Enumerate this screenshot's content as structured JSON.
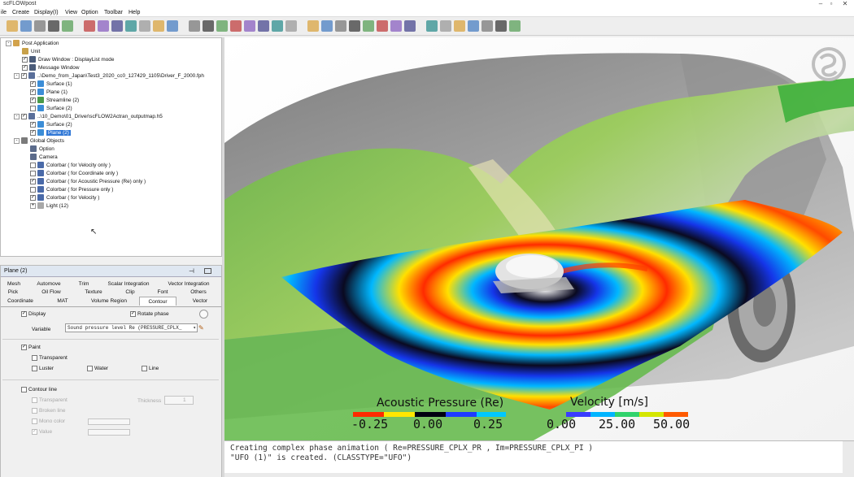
{
  "window": {
    "title": "scFLOWpost"
  },
  "menu": [
    "ile",
    "Create",
    "Display(I)",
    "View",
    "Option",
    "Toolbar",
    "Help"
  ],
  "toolbar_icons": [
    "open-icon",
    "save-icon",
    "save-as-icon",
    "export-icon",
    "cube-icon",
    "model-icon",
    "layers-icon",
    "print-icon",
    "camera-icon",
    "display-icon",
    "settings-icon",
    "probe-icon",
    "grid-icon",
    "rotate-icon",
    "zoom-icon",
    "zoom-fit-icon",
    "pan-icon",
    "view-icon",
    "window-icon",
    "copy-icon",
    "paste-icon",
    "plot-icon",
    "graph-icon",
    "chart-icon",
    "table-icon",
    "image-icon",
    "video-icon",
    "color-icon",
    "palette-icon",
    "box-icon",
    "fill-icon",
    "bw-icon",
    "monitor-icon",
    "layout-icon",
    "help-icon"
  ],
  "tree": {
    "items": [
      {
        "label": "Post Application",
        "level": 0,
        "checked": null,
        "expander": "-",
        "icon": "app-icon"
      },
      {
        "label": "Unit",
        "level": 2,
        "checked": null,
        "expander": null,
        "icon": "unit-icon"
      },
      {
        "label": "Draw Window : DisplayList mode",
        "level": 2,
        "checked": true,
        "expander": null,
        "icon": "window-icon"
      },
      {
        "label": "Message Window",
        "level": 2,
        "checked": true,
        "expander": null,
        "icon": "window-icon"
      },
      {
        "label": "..\\Demo_from_Japan\\Test3_2020_cc0_127429_1105\\Driver_F_2000.fph",
        "level": 1,
        "checked": true,
        "expander": "-",
        "icon": "file-icon"
      },
      {
        "label": "Surface (1)",
        "level": 3,
        "checked": true,
        "expander": null,
        "icon": "surface-icon"
      },
      {
        "label": "Plane (1)",
        "level": 3,
        "checked": true,
        "expander": null,
        "icon": "plane-icon"
      },
      {
        "label": "Streamline (2)",
        "level": 3,
        "checked": true,
        "expander": null,
        "icon": "streamline-icon"
      },
      {
        "label": "Surface (2)",
        "level": 3,
        "checked": false,
        "expander": null,
        "icon": "surface-icon"
      },
      {
        "label": "..\\10_Demo\\01_Driver\\scFLOW2Actran_outputmap.h5",
        "level": 1,
        "checked": true,
        "expander": "-",
        "icon": "file-icon"
      },
      {
        "label": "Surface (2)",
        "level": 3,
        "checked": true,
        "expander": null,
        "icon": "surface-icon"
      },
      {
        "label": "Plane (2)",
        "level": 3,
        "checked": true,
        "expander": null,
        "icon": "plane-icon",
        "selected": true
      },
      {
        "label": "Global Objects",
        "level": 1,
        "checked": null,
        "expander": "-",
        "icon": "globe-icon"
      },
      {
        "label": "Option",
        "level": 3,
        "checked": null,
        "expander": null,
        "icon": "option-icon"
      },
      {
        "label": "Camera",
        "level": 3,
        "checked": null,
        "expander": null,
        "icon": "camera-icon"
      },
      {
        "label": "Colorbar ( for Velocity only )",
        "level": 3,
        "checked": false,
        "expander": null,
        "icon": "colorbar-icon"
      },
      {
        "label": "Colorbar ( for Coordinate only )",
        "level": 3,
        "checked": false,
        "expander": null,
        "icon": "colorbar-icon"
      },
      {
        "label": "Colorbar ( for Acoustic Pressure (Re) only )",
        "level": 3,
        "checked": true,
        "expander": null,
        "icon": "colorbar-icon"
      },
      {
        "label": "Colorbar ( for Pressure only )",
        "level": 3,
        "checked": false,
        "expander": null,
        "icon": "colorbar-icon"
      },
      {
        "label": "Colorbar ( for Velocity )",
        "level": 3,
        "checked": true,
        "expander": null,
        "icon": "colorbar-icon"
      },
      {
        "label": "Light (12)",
        "level": 3,
        "checked": null,
        "expander": "+",
        "icon": "light-icon"
      }
    ]
  },
  "property": {
    "title": "Plane (2)",
    "tabs_row1": [
      "Mesh",
      "Automove",
      "Trim",
      "Scalar Integration",
      "Vector Integration"
    ],
    "tabs_row2": [
      "Pick",
      "Oil Flow",
      "Texture",
      "Clip",
      "Font",
      "Others"
    ],
    "tabs_row3": [
      "Coordinate",
      "MAT",
      "Volume Region",
      "Contour",
      "Vector"
    ],
    "active_tab": "Contour",
    "display_label": "Display",
    "display_checked": true,
    "rotate_phase_label": "Rotate phase",
    "rotate_phase_checked": true,
    "variable_label": "Variable",
    "variable_value": "Sound pressure level Re (PRESSURE_CPLX_",
    "paint_label": "Paint",
    "paint_checked": true,
    "transparent_label": "Transparent",
    "luster_label": "Luster",
    "water_label": "Water",
    "line_label": "Line",
    "contour_line_label": "Contour line",
    "transparent2_label": "Transparent",
    "thickness_label": "Thickness",
    "thickness_value": "1",
    "broken_line_label": "Broken line",
    "mono_color_label": "Mono color",
    "value_label": "Value"
  },
  "viewport": {
    "colorbars": [
      {
        "title": "Acoustic Pressure (Re)",
        "ticks": [
          "-0.25",
          "0.00",
          "0.25"
        ],
        "colors": [
          "#ff2a00",
          "#ffe600",
          "#000010",
          "#1e3cff",
          "#00c8ff"
        ]
      },
      {
        "title": "Velocity [m/s]",
        "ticks": [
          "0.00",
          "25.00",
          "50.00"
        ],
        "colors": [
          "#3a3cff",
          "#00b4ff",
          "#31d36c",
          "#d4e600",
          "#ff5a00"
        ]
      }
    ]
  },
  "messages": [
    "Creating complex phase animation ( Re=PRESSURE_CPLX_PR , Im=PRESSURE_CPLX_PI )",
    "\"UFO (1)\" is created. (CLASSTYPE=\"UFO\")"
  ]
}
